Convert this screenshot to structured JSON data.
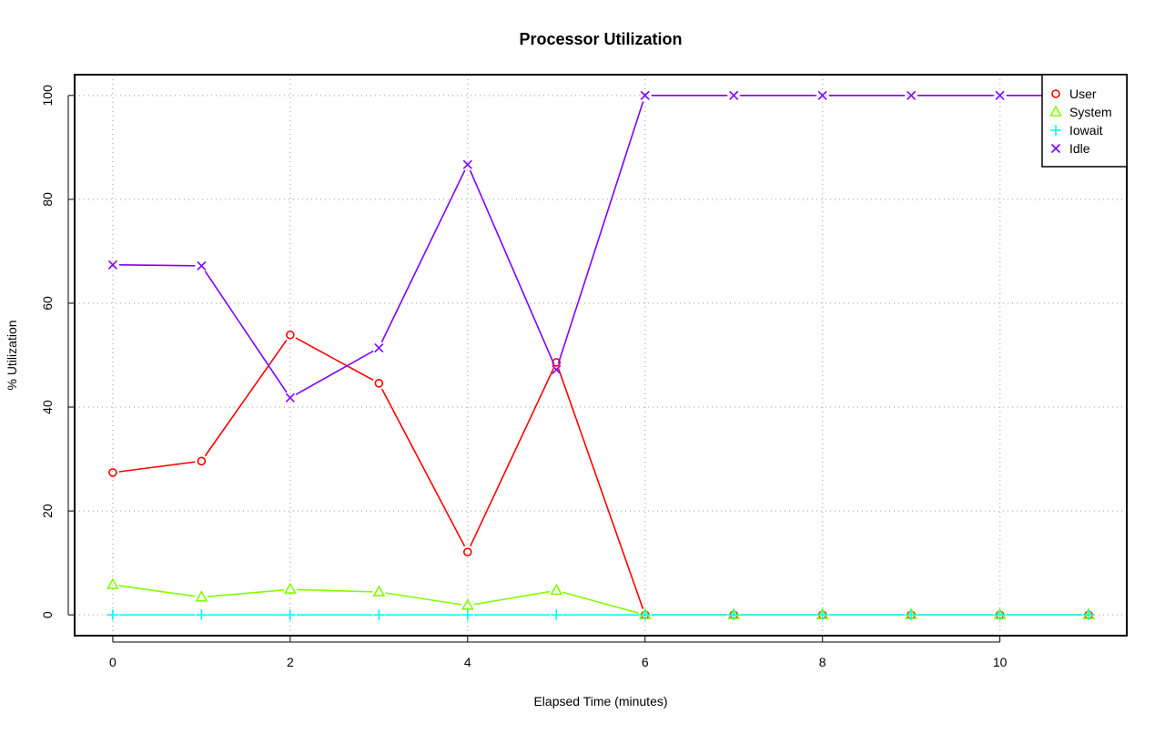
{
  "chart_data": {
    "type": "line",
    "title": "Processor Utilization",
    "xlabel": "Elapsed Time (minutes)",
    "ylabel": "% Utilization",
    "xlim": [
      -0.43,
      11.43
    ],
    "ylim": [
      -4,
      104
    ],
    "x_ticks": [
      0,
      2,
      4,
      6,
      8,
      10
    ],
    "y_ticks": [
      0,
      20,
      40,
      60,
      80,
      100
    ],
    "grid": true,
    "legend_position": "top-right",
    "x": [
      0,
      1,
      2,
      3,
      4,
      5,
      6,
      7,
      8,
      9,
      10,
      11
    ],
    "series": [
      {
        "name": "User",
        "color": "#ff0000",
        "marker": "circle",
        "values": [
          27.4,
          29.6,
          53.9,
          44.6,
          12.1,
          48.6,
          0,
          0,
          0,
          0,
          0,
          0
        ]
      },
      {
        "name": "System",
        "color": "#80ff00",
        "marker": "triangle",
        "values": [
          5.8,
          3.4,
          4.9,
          4.4,
          1.8,
          4.7,
          0,
          0,
          0,
          0,
          0,
          0
        ]
      },
      {
        "name": "Iowait",
        "color": "#00ffff",
        "marker": "plus",
        "values": [
          0,
          0,
          0,
          0,
          0,
          0,
          0,
          0,
          0,
          0,
          0,
          0
        ]
      },
      {
        "name": "Idle",
        "color": "#8000ff",
        "marker": "cross",
        "values": [
          67.4,
          67.2,
          41.8,
          51.4,
          86.7,
          47.2,
          100,
          100,
          100,
          100,
          100,
          100
        ]
      }
    ]
  }
}
